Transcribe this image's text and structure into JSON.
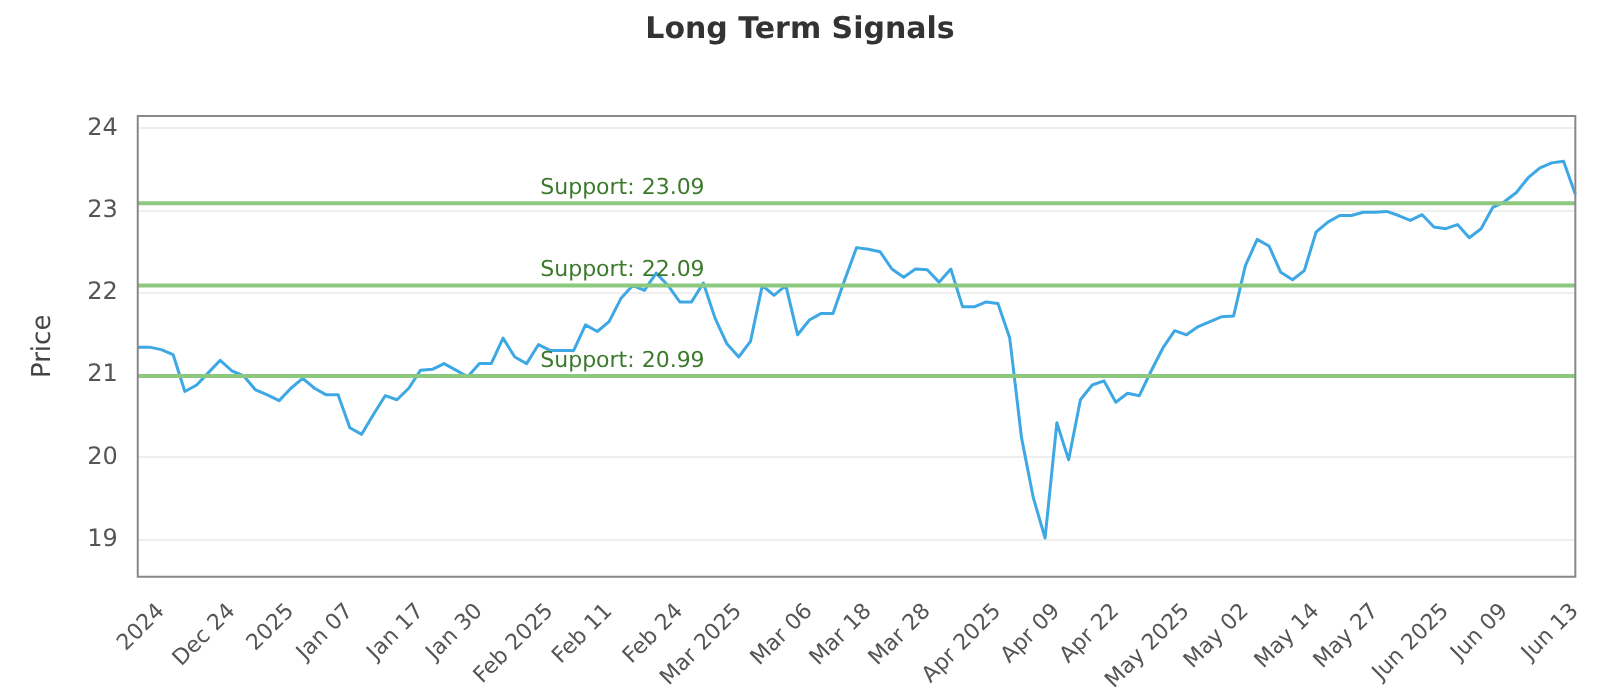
{
  "chart_data": {
    "type": "line",
    "title": "Long Term Signals",
    "ylabel": "Price",
    "categories": [
      null,
      null,
      "2024",
      null,
      null,
      null,
      null,
      null,
      "Dec 24",
      null,
      null,
      null,
      null,
      "2025",
      null,
      null,
      null,
      null,
      "Jan 07",
      null,
      null,
      null,
      null,
      null,
      "Jan 17",
      null,
      null,
      null,
      null,
      "Jan 30",
      null,
      null,
      null,
      null,
      null,
      "Feb 2025",
      null,
      null,
      null,
      null,
      "Feb 11",
      null,
      null,
      null,
      null,
      null,
      "Feb 24",
      null,
      null,
      null,
      null,
      "Mar 2025",
      null,
      null,
      null,
      null,
      null,
      "Mar 06",
      null,
      null,
      null,
      null,
      "Mar 18",
      null,
      null,
      null,
      null,
      "Mar 28",
      null,
      null,
      null,
      null,
      null,
      "Apr 2025",
      null,
      null,
      null,
      null,
      "Apr 09",
      null,
      null,
      null,
      null,
      "Apr 22",
      null,
      null,
      null,
      null,
      null,
      "May 2025",
      null,
      null,
      null,
      null,
      "May 02",
      null,
      null,
      null,
      null,
      null,
      "May 14",
      null,
      null,
      null,
      null,
      "May 27",
      null,
      null,
      null,
      null,
      null,
      "Jun 2025",
      null,
      null,
      null,
      null,
      "Jun 09",
      null,
      null,
      null,
      null,
      null,
      "Jun 13"
    ],
    "series": [
      {
        "color": "#3ea8e5",
        "values": [
          21.34,
          21.34,
          21.31,
          21.25,
          20.8,
          20.88,
          21.03,
          21.18,
          21.05,
          20.99,
          20.82,
          20.76,
          20.69,
          20.84,
          20.96,
          20.84,
          20.76,
          20.76,
          20.36,
          20.28,
          20.52,
          20.75,
          20.7,
          20.84,
          21.06,
          21.07,
          21.14,
          21.06,
          20.98,
          21.14,
          21.14,
          21.45,
          21.22,
          21.14,
          21.37,
          21.3,
          21.3,
          21.3,
          21.61,
          21.53,
          21.65,
          21.93,
          22.09,
          22.03,
          22.24,
          22.09,
          21.89,
          21.89,
          22.12,
          21.69,
          21.38,
          21.22,
          21.41,
          22.09,
          21.97,
          22.09,
          21.49,
          21.67,
          21.75,
          21.75,
          22.16,
          22.55,
          22.53,
          22.5,
          22.29,
          22.19,
          22.29,
          22.28,
          22.13,
          22.29,
          21.83,
          21.83,
          21.89,
          21.87,
          21.45,
          20.24,
          19.51,
          19.02,
          20.42,
          19.97,
          20.7,
          20.88,
          20.93,
          20.67,
          20.78,
          20.75,
          21.05,
          21.33,
          21.54,
          21.49,
          21.59,
          21.65,
          21.71,
          21.72,
          22.33,
          22.65,
          22.57,
          22.25,
          22.16,
          22.27,
          22.74,
          22.86,
          22.94,
          22.94,
          22.98,
          22.98,
          22.99,
          22.94,
          22.88,
          22.95,
          22.8,
          22.78,
          22.83,
          22.67,
          22.78,
          23.04,
          23.11,
          23.22,
          23.4,
          23.52,
          23.58,
          23.6,
          23.2
        ]
      }
    ],
    "ylim": [
      18.55,
      24.15
    ],
    "yticks": [
      19,
      20,
      21,
      22,
      23,
      24
    ],
    "grid": "y",
    "marker": "none",
    "line_style": "solid",
    "ref_lines": [
      {
        "axis": "y",
        "value": 23.09,
        "label": "Support: 23.09",
        "color": "#8cc97e"
      },
      {
        "axis": "y",
        "value": 22.09,
        "label": "Support: 22.09",
        "color": "#8cc97e"
      },
      {
        "axis": "y",
        "value": 20.99,
        "label": "Support: 20.99",
        "color": "#8cc97e"
      }
    ]
  }
}
